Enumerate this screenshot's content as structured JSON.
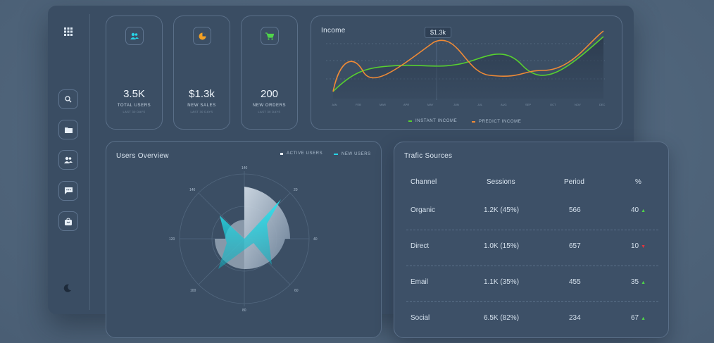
{
  "stats": [
    {
      "value": "3.5K",
      "label": "TOTAL USERS",
      "sub": "LAST 30 DAYS",
      "icon": "users-icon",
      "color": "#27d3e6"
    },
    {
      "value": "$1.3k",
      "label": "NEW SALES",
      "sub": "LAST 30 DAYS",
      "icon": "pie-chart-icon",
      "color": "#f2a024"
    },
    {
      "value": "200",
      "label": "NEW ORDERS",
      "sub": "LAST 30 DAYS",
      "icon": "cart-icon",
      "color": "#4fd44a"
    }
  ],
  "income": {
    "title": "Income",
    "tooltip": "$1.3k",
    "legend": [
      {
        "label": "INSTANT INCOME",
        "color": "#57d12f"
      },
      {
        "label": "PREDICT INCOME",
        "color": "#ef8a36"
      }
    ]
  },
  "users": {
    "title": "Users Overview",
    "legend": [
      {
        "label": "ACTIVE USERS",
        "color": "#e8eef5"
      },
      {
        "label": "NEW USERS",
        "color": "#27d3e6"
      }
    ],
    "angle_labels": [
      "140",
      "20",
      "40",
      "60",
      "80",
      "100",
      "120",
      "140"
    ]
  },
  "traffic": {
    "title": "Trafic Sources",
    "headers": [
      "Channel",
      "Sessions",
      "Period",
      "%"
    ],
    "rows": [
      {
        "channel": "Organic",
        "sessions": "1.2K (45%)",
        "period": "566",
        "percent": "40",
        "trend": "up"
      },
      {
        "channel": "Direct",
        "sessions": "1.0K (15%)",
        "period": "657",
        "percent": "10",
        "trend": "down"
      },
      {
        "channel": "Email",
        "sessions": "1.1K (35%)",
        "period": "455",
        "percent": "35",
        "trend": "up"
      },
      {
        "channel": "Social",
        "sessions": "6.5K (82%)",
        "period": "234",
        "percent": "67",
        "trend": "up"
      }
    ]
  },
  "sidebar": {
    "items": [
      "grid-icon",
      "search-icon",
      "folder-icon",
      "users-icon",
      "chat-icon",
      "bag-icon",
      "moon-icon"
    ]
  }
}
